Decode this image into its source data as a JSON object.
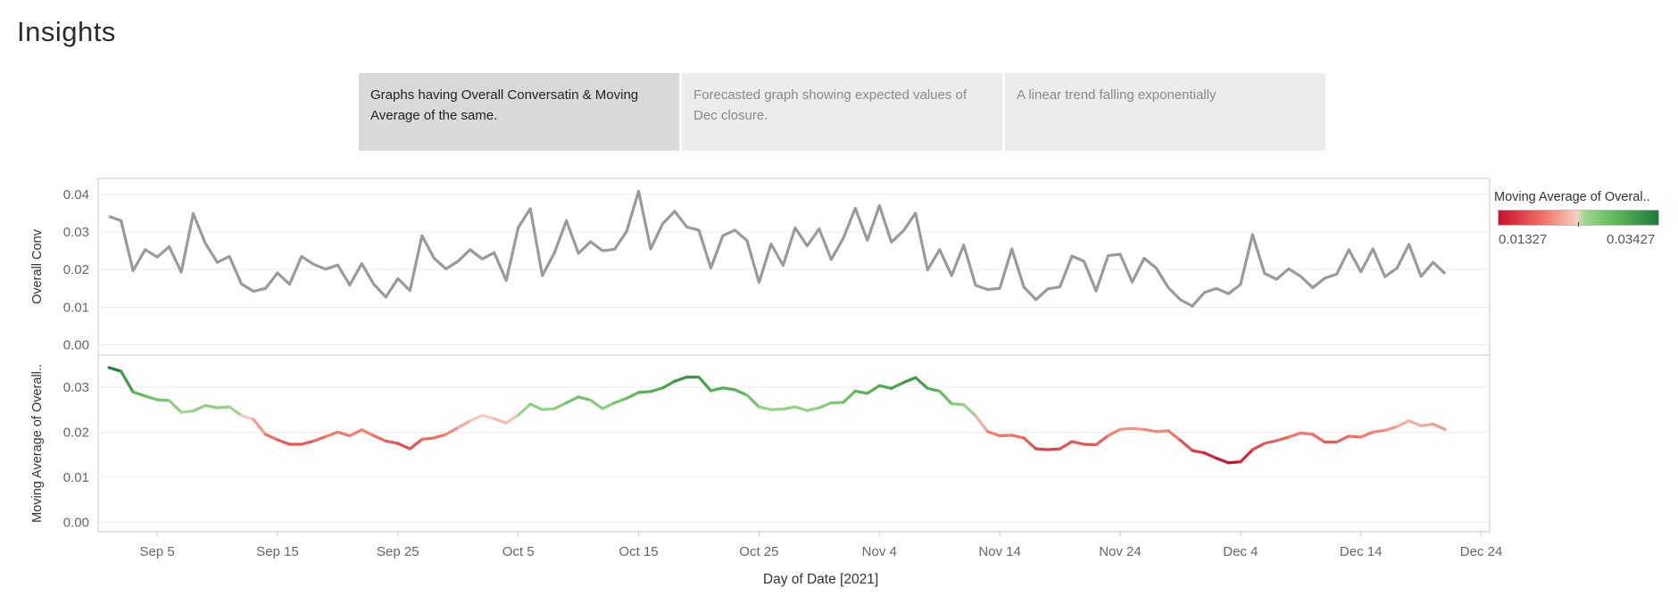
{
  "page": {
    "title": "Insights"
  },
  "tabs": [
    {
      "label": "Graphs having Overall Conversatin & Moving Average of the same.",
      "active": true
    },
    {
      "label": "Forecasted graph showing expected values of Dec closure.",
      "active": false
    },
    {
      "label": "A linear trend falling exponentially",
      "active": false
    }
  ],
  "legend": {
    "title": "Moving Average of Overal..",
    "min_label": "0.01327",
    "max_label": "0.03427",
    "colors": [
      "#c8102e",
      "#f4796b",
      "#f6cfc4",
      "#9fd68f",
      "#5fba5a",
      "#1f7a3c"
    ]
  },
  "colors": {
    "line_gray": "#9a9a9a",
    "grid": "#ececec",
    "axis": "#c8c8c8"
  },
  "chart_data": {
    "type": "line",
    "x_axis": {
      "label": "Day of Date [2021]",
      "ticks": [
        "Sep 5",
        "Sep 15",
        "Sep 25",
        "Oct 5",
        "Oct 15",
        "Oct 25",
        "Nov 4",
        "Nov 14",
        "Nov 24",
        "Dec 4",
        "Dec 14",
        "Dec 24"
      ],
      "start": "2021-09-01",
      "range_days": [
        -0.9,
        114.7
      ]
    },
    "panels": [
      {
        "name": "Overall Conv",
        "ylabel": "Overall Conv",
        "ylim": [
          -0.002,
          0.0435
        ],
        "yticks": [
          "0.00",
          "0.01",
          "0.02",
          "0.03",
          "0.04"
        ],
        "color_by": "none",
        "values": [
          0.0341,
          0.033,
          0.0197,
          0.0253,
          0.0233,
          0.0261,
          0.0193,
          0.0349,
          0.027,
          0.0219,
          0.0235,
          0.0162,
          0.0142,
          0.015,
          0.0191,
          0.0161,
          0.0235,
          0.0214,
          0.0201,
          0.0212,
          0.0159,
          0.0216,
          0.0161,
          0.0127,
          0.0176,
          0.0144,
          0.029,
          0.023,
          0.0202,
          0.0222,
          0.0253,
          0.0228,
          0.0245,
          0.0171,
          0.0312,
          0.0362,
          0.0184,
          0.0244,
          0.033,
          0.0243,
          0.0274,
          0.025,
          0.0254,
          0.0301,
          0.0408,
          0.0255,
          0.0322,
          0.0355,
          0.0313,
          0.0305,
          0.0204,
          0.029,
          0.0305,
          0.0277,
          0.0166,
          0.0268,
          0.0211,
          0.0311,
          0.0263,
          0.0308,
          0.0227,
          0.0283,
          0.0363,
          0.0278,
          0.037,
          0.0273,
          0.0303,
          0.035,
          0.0199,
          0.0253,
          0.0184,
          0.0265,
          0.0158,
          0.0147,
          0.015,
          0.0255,
          0.0154,
          0.012,
          0.0149,
          0.0154,
          0.0236,
          0.0222,
          0.0143,
          0.0237,
          0.0241,
          0.0167,
          0.023,
          0.0204,
          0.0152,
          0.012,
          0.0103,
          0.0139,
          0.015,
          0.0136,
          0.016,
          0.0293,
          0.019,
          0.0174,
          0.0202,
          0.0182,
          0.0152,
          0.0177,
          0.0188,
          0.0253,
          0.0194,
          0.0255,
          0.0181,
          0.0204,
          0.0267,
          0.0182,
          0.0219,
          0.0189
        ]
      },
      {
        "name": "Moving Average of Overall..",
        "ylabel": "Moving Average of Overall..",
        "ylim": [
          -0.0015,
          0.0365
        ],
        "yticks": [
          "0.00",
          "0.01",
          "0.02",
          "0.03"
        ],
        "color_by": "value",
        "values": [
          0.0343,
          0.0335,
          0.0289,
          0.028,
          0.0272,
          0.027,
          0.0244,
          0.0247,
          0.0259,
          0.0254,
          0.0256,
          0.0237,
          0.0228,
          0.0195,
          0.0183,
          0.0173,
          0.0173,
          0.018,
          0.019,
          0.02,
          0.0192,
          0.0205,
          0.0192,
          0.018,
          0.0175,
          0.0163,
          0.0184,
          0.0187,
          0.0195,
          0.021,
          0.0225,
          0.0237,
          0.023,
          0.022,
          0.0238,
          0.0262,
          0.025,
          0.0252,
          0.0265,
          0.0278,
          0.0271,
          0.0252,
          0.0265,
          0.0275,
          0.0288,
          0.029,
          0.0298,
          0.0313,
          0.0322,
          0.0322,
          0.0292,
          0.0298,
          0.0294,
          0.0282,
          0.0256,
          0.025,
          0.0251,
          0.0256,
          0.0248,
          0.0254,
          0.0265,
          0.0266,
          0.0291,
          0.0286,
          0.0303,
          0.0297,
          0.031,
          0.0321,
          0.0297,
          0.0291,
          0.0263,
          0.0261,
          0.0236,
          0.0201,
          0.0192,
          0.0193,
          0.0187,
          0.0163,
          0.0161,
          0.0163,
          0.0179,
          0.0173,
          0.0172,
          0.0192,
          0.0206,
          0.0208,
          0.0206,
          0.0201,
          0.0203,
          0.0182,
          0.0159,
          0.0154,
          0.0142,
          0.0132,
          0.0134,
          0.0161,
          0.0175,
          0.0181,
          0.0189,
          0.0198,
          0.0195,
          0.0178,
          0.0178,
          0.0191,
          0.0189,
          0.02,
          0.0204,
          0.0212,
          0.0225,
          0.0214,
          0.0218,
          0.0206
        ]
      }
    ]
  }
}
